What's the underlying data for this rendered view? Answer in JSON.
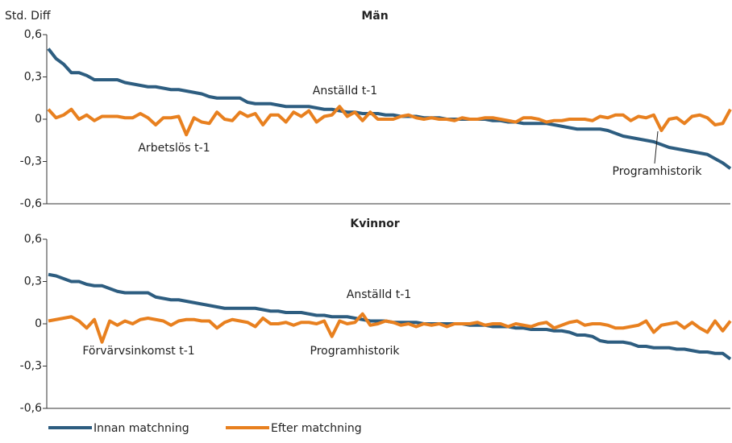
{
  "chart_data": [
    {
      "type": "line",
      "title": "Män",
      "y_label": "Std. Diff",
      "categories": [
        null,
        null,
        null,
        null,
        null,
        null,
        null,
        null,
        null,
        null,
        null,
        null,
        null,
        null,
        null,
        null,
        null,
        null,
        null,
        null,
        null,
        null,
        null,
        null,
        null,
        null,
        null,
        null,
        null,
        null,
        null,
        null,
        null,
        null,
        null,
        null,
        null,
        null,
        null,
        null,
        null,
        null,
        null,
        null,
        null,
        null,
        null,
        null,
        null,
        null,
        null,
        null,
        null,
        null,
        null,
        null,
        null,
        null,
        null,
        null,
        null,
        null,
        null,
        null,
        null,
        null,
        null,
        null,
        null,
        null,
        null,
        null,
        null,
        null,
        null,
        null,
        null,
        null,
        null,
        null,
        null,
        null,
        null,
        null,
        null,
        null,
        null,
        null,
        null,
        null
      ],
      "series": [
        {
          "name": "Innan matchning",
          "color": "#2d5d80",
          "values": [
            0.5,
            0.43,
            0.39,
            0.33,
            0.33,
            0.31,
            0.28,
            0.28,
            0.28,
            0.28,
            0.26,
            0.25,
            0.24,
            0.23,
            0.23,
            0.22,
            0.21,
            0.21,
            0.2,
            0.19,
            0.18,
            0.16,
            0.15,
            0.15,
            0.15,
            0.15,
            0.12,
            0.11,
            0.11,
            0.11,
            0.1,
            0.09,
            0.09,
            0.09,
            0.09,
            0.08,
            0.07,
            0.07,
            0.06,
            0.05,
            0.05,
            0.04,
            0.04,
            0.04,
            0.03,
            0.03,
            0.02,
            0.02,
            0.02,
            0.01,
            0.01,
            0.01,
            0.0,
            0.0,
            0.0,
            0.0,
            0.0,
            0.0,
            -0.01,
            -0.01,
            -0.02,
            -0.02,
            -0.03,
            -0.03,
            -0.03,
            -0.03,
            -0.04,
            -0.05,
            -0.06,
            -0.07,
            -0.07,
            -0.07,
            -0.07,
            -0.08,
            -0.1,
            -0.12,
            -0.13,
            -0.14,
            -0.15,
            -0.16,
            -0.18,
            -0.2,
            -0.21,
            -0.22,
            -0.23,
            -0.24,
            -0.25,
            -0.28,
            -0.31,
            -0.35
          ]
        },
        {
          "name": "Efter matchning",
          "color": "#e8801f",
          "values": [
            0.07,
            0.01,
            0.03,
            0.07,
            0.0,
            0.03,
            -0.01,
            0.02,
            0.02,
            0.02,
            0.01,
            0.01,
            0.04,
            0.01,
            -0.04,
            0.01,
            0.01,
            0.02,
            -0.11,
            0.01,
            -0.02,
            -0.03,
            0.05,
            0.0,
            -0.01,
            0.05,
            0.02,
            0.04,
            -0.04,
            0.03,
            0.03,
            -0.02,
            0.05,
            0.02,
            0.06,
            -0.02,
            0.02,
            0.03,
            0.09,
            0.02,
            0.05,
            -0.01,
            0.05,
            0.0,
            0.0,
            0.0,
            0.02,
            0.03,
            0.01,
            0.0,
            0.01,
            0.0,
            0.0,
            -0.01,
            0.01,
            0.0,
            0.0,
            0.01,
            0.01,
            0.0,
            -0.01,
            -0.02,
            0.01,
            0.01,
            0.0,
            -0.02,
            -0.01,
            -0.01,
            0.0,
            0.0,
            0.0,
            -0.01,
            0.02,
            0.01,
            0.03,
            0.03,
            -0.01,
            0.02,
            0.01,
            0.03,
            -0.08,
            0.0,
            0.01,
            -0.03,
            0.02,
            0.03,
            0.01,
            -0.04,
            -0.03,
            0.07
          ]
        }
      ],
      "ylim": [
        -0.6,
        0.6
      ],
      "yticks": [
        {
          "value": -0.6,
          "label": "-0,6"
        },
        {
          "value": -0.3,
          "label": "-0,3"
        },
        0,
        {
          "value": 0.3,
          "label": "0,3"
        },
        {
          "value": 0.6,
          "label": "0,6"
        }
      ],
      "annotations": [
        "Anställd t-1",
        "Arbetslös t-1",
        "Programhistorik"
      ]
    },
    {
      "type": "line",
      "title": "Kvinnor",
      "categories": [
        null,
        null,
        null,
        null,
        null,
        null,
        null,
        null,
        null,
        null,
        null,
        null,
        null,
        null,
        null,
        null,
        null,
        null,
        null,
        null,
        null,
        null,
        null,
        null,
        null,
        null,
        null,
        null,
        null,
        null,
        null,
        null,
        null,
        null,
        null,
        null,
        null,
        null,
        null,
        null,
        null,
        null,
        null,
        null,
        null,
        null,
        null,
        null,
        null,
        null,
        null,
        null,
        null,
        null,
        null,
        null,
        null,
        null,
        null,
        null,
        null,
        null,
        null,
        null,
        null,
        null,
        null,
        null,
        null,
        null,
        null,
        null,
        null,
        null,
        null,
        null,
        null,
        null,
        null,
        null,
        null,
        null,
        null,
        null,
        null,
        null,
        null,
        null,
        null,
        null
      ],
      "series": [
        {
          "color": "#2d5d80",
          "values": [
            0.35,
            0.34,
            0.32,
            0.3,
            0.3,
            0.28,
            0.27,
            0.27,
            0.25,
            0.23,
            0.22,
            0.22,
            0.22,
            0.22,
            0.19,
            0.18,
            0.17,
            0.17,
            0.16,
            0.15,
            0.14,
            0.13,
            0.12,
            0.11,
            0.11,
            0.11,
            0.11,
            0.11,
            0.1,
            0.09,
            0.09,
            0.08,
            0.08,
            0.08,
            0.07,
            0.06,
            0.06,
            0.05,
            0.05,
            0.05,
            0.04,
            0.03,
            0.02,
            0.02,
            0.02,
            0.01,
            0.01,
            0.01,
            0.01,
            0.0,
            0.0,
            0.0,
            0.0,
            0.0,
            0.0,
            -0.01,
            -0.01,
            -0.01,
            -0.02,
            -0.02,
            -0.02,
            -0.03,
            -0.03,
            -0.04,
            -0.04,
            -0.04,
            -0.05,
            -0.05,
            -0.06,
            -0.08,
            -0.08,
            -0.09,
            -0.12,
            -0.13,
            -0.13,
            -0.13,
            -0.14,
            -0.16,
            -0.16,
            -0.17,
            -0.17,
            -0.17,
            -0.18,
            -0.18,
            -0.19,
            -0.2,
            -0.2,
            -0.21,
            -0.21,
            -0.25
          ]
        },
        {
          "color": "#e8801f",
          "values": [
            0.02,
            0.03,
            0.04,
            0.05,
            0.02,
            -0.03,
            0.03,
            -0.13,
            0.02,
            -0.01,
            0.02,
            0.0,
            0.03,
            0.04,
            0.03,
            0.02,
            -0.01,
            0.02,
            0.03,
            0.03,
            0.02,
            0.02,
            -0.03,
            0.01,
            0.03,
            0.02,
            0.01,
            -0.02,
            0.04,
            0.0,
            0.0,
            0.01,
            -0.01,
            0.01,
            0.01,
            0.0,
            0.02,
            -0.09,
            0.02,
            0.0,
            0.01,
            0.07,
            -0.01,
            0.0,
            0.02,
            0.01,
            -0.01,
            0.0,
            -0.02,
            0.0,
            -0.01,
            0.0,
            -0.02,
            0.0,
            0.0,
            0.0,
            0.01,
            -0.01,
            0.0,
            0.0,
            -0.02,
            0.0,
            -0.01,
            -0.02,
            0.0,
            0.01,
            -0.03,
            -0.01,
            0.01,
            0.02,
            -0.01,
            0.0,
            0.0,
            -0.01,
            -0.03,
            -0.03,
            -0.02,
            -0.01,
            0.02,
            -0.06,
            -0.01,
            0.0,
            0.01,
            -0.03,
            0.01,
            -0.03,
            -0.06,
            0.02,
            -0.05,
            0.02
          ]
        }
      ],
      "ylim": [
        -0.6,
        0.6
      ],
      "yticks": [
        {
          "value": -0.6,
          "label": "-0,6"
        },
        {
          "value": -0.3,
          "label": "-0,3"
        },
        0,
        {
          "value": 0.3,
          "label": "0,3"
        },
        {
          "value": 0.6,
          "label": "0,6"
        }
      ],
      "annotations": [
        "Anställd t-1",
        "Förvärvsinkomst t-1",
        "Programhistorik"
      ]
    }
  ]
}
